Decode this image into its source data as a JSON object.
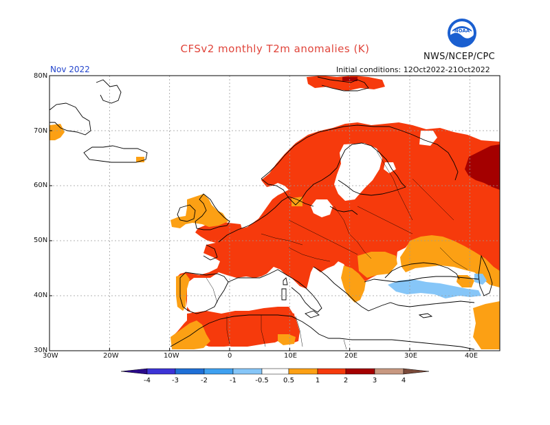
{
  "title": "CFSv2 monthly T2m anomalies (K)",
  "agency": "NWS/NCEP/CPC",
  "logo_text": "NOAA",
  "month": "Nov 2022",
  "initial_conditions": "Initial conditions: 12Oct2022-21Oct2022",
  "lat_labels": [
    "80N",
    "70N",
    "60N",
    "50N",
    "40N",
    "30N"
  ],
  "lon_labels": [
    "30W",
    "20W",
    "10W",
    "0",
    "10E",
    "20E",
    "30E",
    "40E"
  ],
  "colorbar": {
    "tick_labels": [
      "-4",
      "-3",
      "-2",
      "-1",
      "-0.5",
      "0.5",
      "1",
      "2",
      "3",
      "4"
    ],
    "colors": [
      "#2a0a8a",
      "#3c33d6",
      "#1f6fd6",
      "#3ea0f0",
      "#86c6f8",
      "#ffffff",
      "#fca014",
      "#f63a0c",
      "#a40000",
      "#c89880",
      "#7a4a3a"
    ]
  },
  "colors": {
    "sea": "#ffffff",
    "coast": "#000000",
    "grid": "#999999",
    "warm_05_1": "#fca014",
    "warm_1_2": "#f63a0c",
    "warm_2_3": "#a40000",
    "cool_05_1": "#86c6f8"
  }
}
